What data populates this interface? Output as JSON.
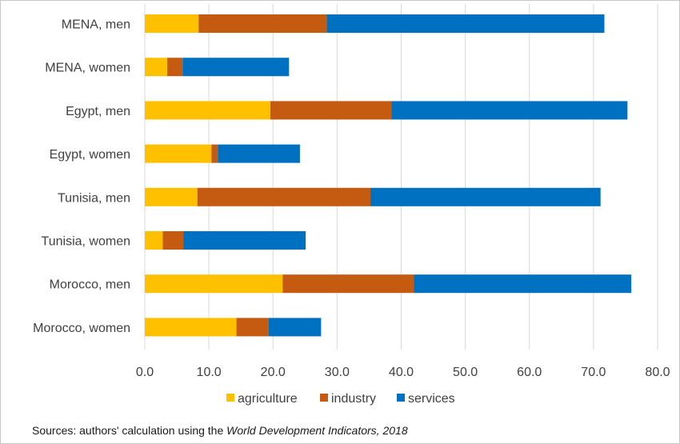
{
  "chart_data": {
    "type": "bar",
    "orientation": "horizontal",
    "stacked": true,
    "categories": [
      "MENA, men",
      "MENA, women",
      "Egypt, men",
      "Egypt, women",
      "Tunisia, men",
      "Tunisia, women",
      "Morocco, men",
      "Morocco, women"
    ],
    "series": [
      {
        "name": "agriculture",
        "color": "#FFC000",
        "values": [
          8.4,
          3.5,
          19.6,
          10.4,
          8.2,
          2.8,
          21.5,
          14.3
        ]
      },
      {
        "name": "industry",
        "color": "#C55A11",
        "values": [
          20.0,
          2.4,
          18.9,
          1.0,
          27.0,
          3.2,
          20.5,
          5.0
        ]
      },
      {
        "name": "services",
        "color": "#0070C0",
        "values": [
          43.3,
          16.6,
          36.8,
          12.8,
          35.9,
          19.1,
          33.9,
          8.2
        ]
      }
    ],
    "xlim": [
      0,
      80
    ],
    "x_ticks": [
      "0.0",
      "10.0",
      "20.0",
      "30.0",
      "40.0",
      "50.0",
      "60.0",
      "70.0",
      "80.0"
    ],
    "grid": "vertical",
    "legend_position": "bottom"
  },
  "source": {
    "prefix": "Sources:  authors' calculation using the ",
    "italic": "World Development Indicators, 2018"
  }
}
